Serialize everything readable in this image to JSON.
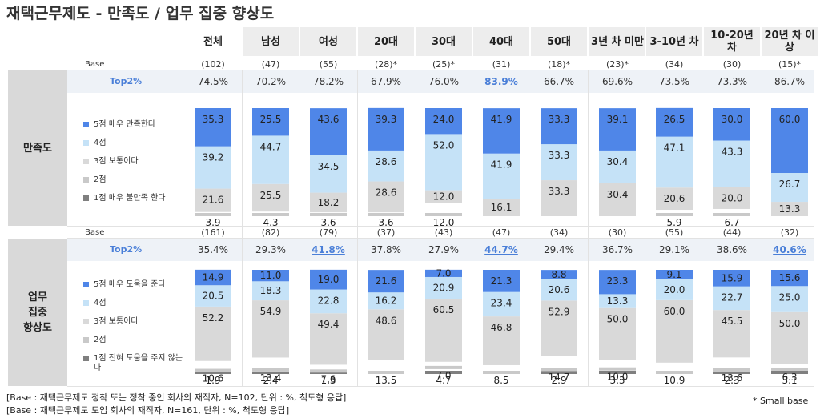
{
  "title": "재택근무제도 - 만족도 / 업무 집중 향상도",
  "columns": [
    "전체",
    "남성",
    "여성",
    "20대",
    "30대",
    "40대",
    "50대",
    "3년 차 미만",
    "3-10년 차",
    "10-20년 차",
    "20년 차 이상"
  ],
  "base_label": "Base",
  "top2_label": "Top2%",
  "sections": [
    {
      "title": "만족도",
      "bases": [
        "(102)",
        "(47)",
        "(55)",
        "(28)*",
        "(25)*",
        "(31)",
        "(18)*",
        "(23)*",
        "(34)",
        "(30)",
        "(15)*"
      ],
      "top2": [
        "74.5%",
        "70.2%",
        "78.2%",
        "67.9%",
        "76.0%",
        "83.9%",
        "66.7%",
        "69.6%",
        "73.5%",
        "73.3%",
        "86.7%"
      ],
      "top2_highlight": [
        5
      ],
      "legend": [
        "5점 매우 만족한다",
        "4점",
        "3점 보통이다",
        "2점",
        "1점 매우 불만족 한다"
      ]
    },
    {
      "title": "업무 집중 향상도",
      "bases": [
        "(161)",
        "(82)",
        "(79)",
        "(37)",
        "(43)",
        "(47)",
        "(34)",
        "(30)",
        "(55)",
        "(44)",
        "(32)"
      ],
      "top2": [
        "35.4%",
        "29.3%",
        "41.8%",
        "37.8%",
        "27.9%",
        "44.7%",
        "29.4%",
        "36.7%",
        "29.1%",
        "38.6%",
        "40.6%"
      ],
      "top2_highlight": [
        2,
        5,
        10
      ],
      "legend": [
        "5점 매우 도움을 준다",
        "4점",
        "3점 보통이다",
        "2점",
        "1점 전혀 도움을 주지 않는다"
      ]
    }
  ],
  "colors": {
    "s5": "#4f86e8",
    "s4": "#c5e2f7",
    "s3": "#d9d9d9",
    "s2": "#c9c9c9",
    "s1": "#7f7f7f",
    "accent": "#4a7fd8"
  },
  "footnotes": [
    "[Base :  재택근무제도 정착 또는 정착 중인 회사의 재직자, N=102, 단위 : %, 척도형 응답]",
    "[Base :  재택근무제도 도입 회사의 재직자, N=161, 단위 : %, 척도형 응답]"
  ],
  "small_base_note": "* Small base",
  "chart_data": [
    {
      "type": "bar",
      "stacked": true,
      "title": "만족도",
      "categories": [
        "전체",
        "남성",
        "여성",
        "20대",
        "30대",
        "40대",
        "50대",
        "3년 차 미만",
        "3-10년 차",
        "10-20년 차",
        "20년 차 이상"
      ],
      "series": [
        {
          "name": "5점 매우 만족한다",
          "values": [
            35.3,
            25.5,
            43.6,
            39.3,
            24.0,
            41.9,
            33.3,
            39.1,
            26.5,
            30.0,
            60.0
          ]
        },
        {
          "name": "4점",
          "values": [
            39.2,
            44.7,
            34.5,
            28.6,
            52.0,
            41.9,
            33.3,
            30.4,
            47.1,
            43.3,
            26.7
          ]
        },
        {
          "name": "3점 보통이다",
          "values": [
            21.6,
            25.5,
            18.2,
            28.6,
            12.0,
            16.1,
            33.3,
            30.4,
            20.6,
            20.0,
            13.3
          ]
        },
        {
          "name": "2점",
          "values": [
            3.9,
            4.3,
            3.6,
            3.6,
            12.0,
            0,
            0,
            0,
            5.9,
            6.7,
            0
          ]
        },
        {
          "name": "1점 매우 불만족 한다",
          "values": [
            0,
            0,
            0,
            0,
            0,
            0,
            0,
            0,
            0,
            0,
            0
          ]
        }
      ],
      "ylim": [
        0,
        100
      ]
    },
    {
      "type": "bar",
      "stacked": true,
      "title": "업무 집중 향상도",
      "categories": [
        "전체",
        "남성",
        "여성",
        "20대",
        "30대",
        "40대",
        "50대",
        "3년 차 미만",
        "3-10년 차",
        "10-20년 차",
        "20년 차 이상"
      ],
      "series": [
        {
          "name": "5점 매우 도움을 준다",
          "values": [
            14.9,
            11.0,
            19.0,
            21.6,
            7.0,
            21.3,
            8.8,
            23.3,
            9.1,
            15.9,
            15.6
          ]
        },
        {
          "name": "4점",
          "values": [
            20.5,
            18.3,
            22.8,
            16.2,
            20.9,
            23.4,
            20.6,
            13.3,
            20.0,
            22.7,
            25.0
          ]
        },
        {
          "name": "3점 보통이다",
          "values": [
            52.2,
            54.9,
            49.4,
            48.6,
            60.5,
            46.8,
            52.9,
            50.0,
            60.0,
            45.5,
            50.0
          ]
        },
        {
          "name": "2점",
          "values": [
            10.6,
            13.4,
            7.6,
            13.5,
            7.0,
            8.5,
            14.7,
            10.0,
            10.9,
            13.6,
            6.3
          ]
        },
        {
          "name": "1점 전혀 도움을 주지 않는다",
          "values": [
            1.9,
            2.4,
            1.3,
            0,
            4.7,
            0,
            2.9,
            3.3,
            0,
            2.3,
            3.1
          ]
        }
      ],
      "ylim": [
        0,
        100
      ]
    }
  ]
}
